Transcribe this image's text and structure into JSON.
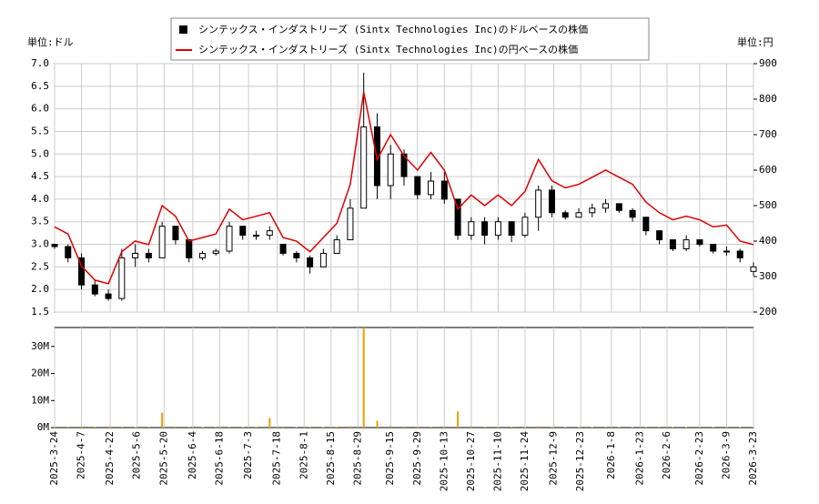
{
  "chart_data": [
    {
      "type": "candlestick",
      "y_label": "単位:ドル",
      "y2_label": "単位:円",
      "xlim": [
        "2025-3-24",
        "2026-3-23"
      ],
      "x": [
        "2025-3-24",
        "2025-3-31",
        "2025-4-7",
        "2025-4-14",
        "2025-4-21",
        "2025-4-28",
        "2025-5-5",
        "2025-5-12",
        "2025-5-19",
        "2025-5-26",
        "2025-6-2",
        "2025-6-9",
        "2025-6-16",
        "2025-6-23",
        "2025-6-30",
        "2025-7-7",
        "2025-7-14",
        "2025-7-21",
        "2025-7-28",
        "2025-8-4",
        "2025-8-11",
        "2025-8-18",
        "2025-8-25",
        "2025-9-1",
        "2025-9-8",
        "2025-9-15",
        "2025-9-22",
        "2025-9-29",
        "2025-10-6",
        "2025-10-13",
        "2025-10-20",
        "2025-10-27",
        "2025-11-3",
        "2025-11-10",
        "2025-11-17",
        "2025-11-24",
        "2025-12-1",
        "2025-12-8",
        "2025-12-15",
        "2025-12-22",
        "2025-12-29",
        "2026-1-5",
        "2026-1-12",
        "2026-1-19",
        "2026-1-26",
        "2026-2-2",
        "2026-2-9",
        "2026-2-16",
        "2026-2-23",
        "2026-3-2",
        "2026-3-9",
        "2026-3-16",
        "2026-3-23"
      ],
      "series": [
        {
          "name": "シンテックス・インダストリーズ (Sintx Technologies Inc)のドルベースの株価",
          "color": "#000000",
          "open": [
            3.0,
            2.95,
            2.7,
            2.1,
            1.9,
            1.8,
            2.7,
            2.8,
            2.7,
            3.4,
            3.1,
            2.7,
            2.8,
            2.85,
            3.4,
            3.2,
            3.2,
            3.0,
            2.8,
            2.7,
            2.5,
            2.8,
            3.1,
            3.8,
            5.6,
            4.3,
            5.0,
            4.5,
            4.1,
            4.4,
            4.0,
            3.2,
            3.5,
            3.2,
            3.5,
            3.2,
            3.6,
            4.2,
            3.7,
            3.6,
            3.7,
            3.8,
            3.9,
            3.75,
            3.6,
            3.3,
            3.1,
            2.9,
            3.1,
            3.0,
            2.85,
            2.85,
            2.4
          ],
          "high": [
            3.0,
            3.0,
            2.8,
            2.2,
            2.0,
            2.9,
            3.0,
            2.9,
            3.5,
            3.4,
            3.1,
            2.85,
            2.9,
            3.5,
            3.4,
            3.3,
            3.4,
            3.0,
            2.85,
            2.75,
            2.9,
            3.2,
            4.0,
            6.8,
            5.9,
            5.2,
            5.1,
            4.5,
            4.6,
            4.6,
            4.0,
            3.6,
            3.6,
            3.6,
            3.5,
            3.7,
            4.3,
            4.3,
            3.75,
            3.8,
            3.9,
            4.0,
            3.9,
            3.8,
            3.6,
            3.3,
            3.1,
            3.2,
            3.1,
            3.0,
            2.95,
            2.9,
            2.6
          ],
          "low": [
            2.9,
            2.6,
            2.0,
            1.85,
            1.75,
            1.75,
            2.5,
            2.6,
            2.7,
            3.0,
            2.6,
            2.65,
            2.75,
            2.8,
            3.1,
            3.1,
            3.1,
            2.75,
            2.6,
            2.35,
            2.5,
            2.8,
            3.1,
            3.8,
            4.0,
            4.0,
            4.3,
            4.0,
            4.0,
            3.9,
            3.1,
            3.1,
            3.0,
            3.1,
            3.05,
            3.15,
            3.3,
            3.6,
            3.55,
            3.6,
            3.6,
            3.7,
            3.7,
            3.5,
            3.2,
            3.0,
            2.85,
            2.85,
            2.95,
            2.8,
            2.75,
            2.6,
            2.3
          ],
          "close": [
            2.95,
            2.7,
            2.1,
            1.9,
            1.8,
            2.7,
            2.8,
            2.7,
            3.4,
            3.1,
            2.7,
            2.8,
            2.85,
            3.4,
            3.2,
            3.2,
            3.3,
            2.8,
            2.7,
            2.5,
            2.8,
            3.1,
            3.8,
            5.6,
            4.3,
            5.0,
            4.5,
            4.1,
            4.4,
            4.0,
            3.2,
            3.5,
            3.2,
            3.5,
            3.2,
            3.6,
            4.2,
            3.7,
            3.6,
            3.7,
            3.8,
            3.9,
            3.75,
            3.6,
            3.3,
            3.1,
            2.9,
            3.1,
            3.0,
            2.85,
            2.85,
            2.7,
            2.5
          ]
        },
        {
          "name": "シンテックス・インダストリーズ (Sintx Technologies Inc)の円ベースの株価",
          "color": "#e00000",
          "axis": "y2",
          "values": [
            440,
            420,
            330,
            290,
            280,
            370,
            400,
            390,
            500,
            470,
            400,
            410,
            420,
            490,
            460,
            470,
            480,
            410,
            400,
            370,
            410,
            450,
            560,
            820,
            630,
            700,
            640,
            600,
            650,
            600,
            490,
            530,
            500,
            530,
            500,
            540,
            630,
            570,
            550,
            560,
            580,
            600,
            580,
            560,
            510,
            480,
            460,
            470,
            460,
            440,
            445,
            400,
            390
          ]
        }
      ],
      "ylim": [
        1.5,
        7.0
      ],
      "yticks": [
        1.5,
        {
          "value": 2,
          "label": "2.0"
        },
        2.5,
        {
          "value": 3,
          "label": "3.0"
        },
        3.5,
        {
          "value": 4,
          "label": "4.0"
        },
        4.5,
        {
          "value": 5,
          "label": "5.0"
        },
        5.5,
        {
          "value": 6,
          "label": "6.0"
        },
        6.5,
        {
          "value": 7,
          "label": "7.0"
        }
      ],
      "y2lim": [
        200,
        900
      ],
      "y2ticks": [
        200,
        300,
        400,
        500,
        600,
        700,
        800,
        900
      ],
      "grid": true
    },
    {
      "type": "bar",
      "color": "#f0a000",
      "xlim": [
        "2025-3-24",
        "2026-3-23"
      ],
      "values": [
        200000,
        300000,
        400000,
        300000,
        500000,
        300000,
        200000,
        300000,
        5500000,
        400000,
        300000,
        200000,
        300000,
        300000,
        200000,
        300000,
        3500000,
        400000,
        200000,
        300000,
        200000,
        300000,
        500000,
        37000000,
        2500000,
        600000,
        400000,
        300000,
        300000,
        400000,
        6000000,
        500000,
        300000,
        200000,
        300000,
        200000,
        500000,
        300000,
        200000,
        200000,
        200000,
        300000,
        200000,
        200000,
        200000,
        300000,
        200000,
        200000,
        200000,
        200000,
        200000,
        200000,
        200000
      ],
      "ylim": [
        0,
        37000000
      ],
      "yticks": [
        {
          "value": 0,
          "label": "0M"
        },
        {
          "value": 10000000,
          "label": "10M"
        },
        {
          "value": 20000000,
          "label": "20M"
        },
        {
          "value": 30000000,
          "label": "30M"
        }
      ],
      "xticks": [
        "2025-3-24",
        "2025-4-7",
        "2025-4-22",
        "2025-5-6",
        "2025-5-20",
        "2025-6-4",
        "2025-6-18",
        "2025-7-3",
        "2025-7-18",
        "2025-8-1",
        "2025-8-15",
        "2025-8-29",
        "2025-9-15",
        "2025-9-29",
        "2025-10-13",
        "2025-10-27",
        "2025-11-10",
        "2025-11-24",
        "2025-12-9",
        "2025-12-23",
        "2026-1-8",
        "2026-1-23",
        "2026-2-6",
        "2026-2-23",
        "2026-3-9",
        "2026-3-23"
      ],
      "grid": true
    }
  ]
}
